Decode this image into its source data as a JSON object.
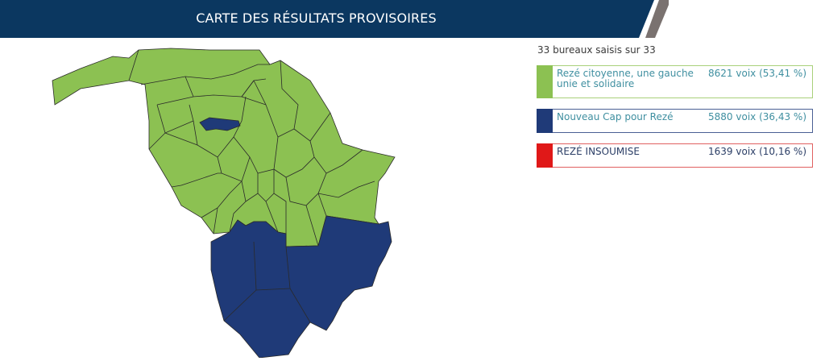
{
  "header": {
    "title": "CARTE DES RÉSULTATS PROVISOIRES"
  },
  "colors": {
    "banner": "#0b3760",
    "banner_accent": "#7a7270",
    "green": "#8cc152",
    "navy": "#1f3a78",
    "red": "#e01818",
    "border_line": "#2a2a2a"
  },
  "status": {
    "offices_text": "33 bureaux saisis sur 33"
  },
  "results": [
    {
      "name": "Rezé citoyenne, une gauche unie et solidaire",
      "votes_text": "8621 voix (53,41 %)",
      "color": "#8cc152",
      "text_color": "#3f8fa0",
      "border": "#a9d07a"
    },
    {
      "name": "Nouveau Cap pour Rezé",
      "votes_text": "5880 voix (36,43 %)",
      "color": "#1f3a78",
      "text_color": "#3f8fa0",
      "border": "#4a5f94"
    },
    {
      "name": "REZÉ INSOUMISE",
      "votes_text": "1639 voix (10,16 %)",
      "color": "#e01818",
      "text_color": "#2b3e66",
      "border": "#e06060"
    }
  ]
}
